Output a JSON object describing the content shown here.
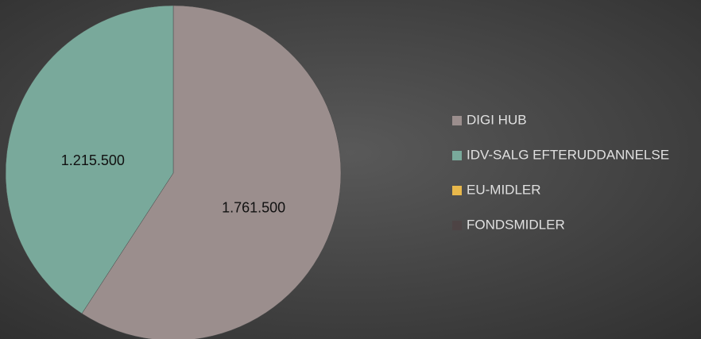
{
  "chart_data": {
    "type": "pie",
    "categories": [
      "DIGI HUB",
      "IDV-SALG EFTERUDDANNELSE",
      "EU-MIDLER",
      "FONDSMIDLER"
    ],
    "values": [
      1761500,
      1215500,
      0,
      0
    ],
    "value_labels": [
      "1.761.500",
      "1.215.500",
      null,
      null
    ],
    "colors": [
      "#9b8e8d",
      "#79a99b",
      "#e8b84b",
      "#4d4344"
    ],
    "legend": "right"
  }
}
